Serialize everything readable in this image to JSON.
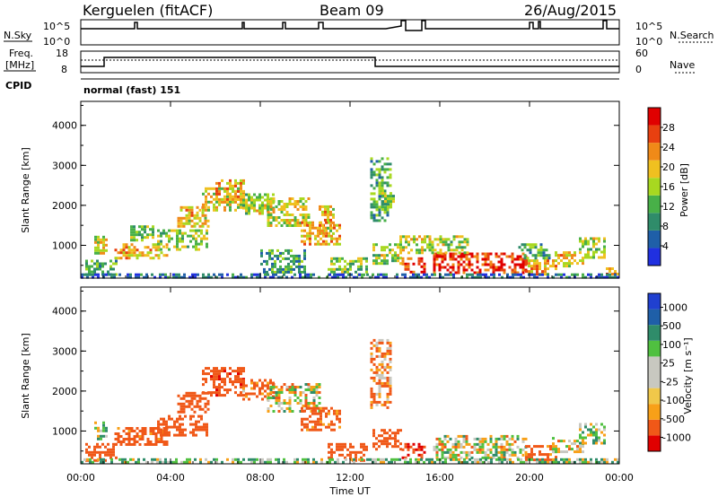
{
  "header": {
    "title": "Kerguelen (fitACF)",
    "beam": "Beam 09",
    "date": "26/Aug/2015"
  },
  "top_panel": {
    "nsky_label": "N.Sky",
    "nsearch_label": "N.Search",
    "left_ticks": [
      "10^5",
      "10^0"
    ],
    "right_ticks": [
      "10^5",
      "10^0"
    ],
    "freq_label_1": "Freq.",
    "freq_label_2": "[MHz]",
    "freq_ticks": [
      "18",
      "8"
    ],
    "nave_label": "Nave",
    "nave_ticks": [
      "60",
      "0"
    ],
    "cpid_label": "CPID",
    "cpid_text": "normal (fast) 151"
  },
  "colors": {
    "power": [
      "#2030e0",
      "#1f5fa8",
      "#2f8c6a",
      "#48b048",
      "#a8d820",
      "#f0c020",
      "#f08a18",
      "#e84010",
      "#e00000"
    ],
    "velocity": [
      "#e00000",
      "#f05818",
      "#f8a018",
      "#f0c84a",
      "#c8c8c0",
      "#c8c8c0",
      "#50c040",
      "#2f8c6a",
      "#1f5fa8",
      "#2040d0"
    ]
  },
  "chart_data": [
    {
      "type": "heatmap",
      "name": "power-panel",
      "ylabel": "Slant Range [km]",
      "yticks": [
        "4000",
        "3000",
        "2000",
        "1000"
      ],
      "ytick_values": [
        4000,
        3000,
        2000,
        1000
      ],
      "ylim": [
        180,
        4600
      ],
      "xlim": [
        0,
        24
      ],
      "colorbar_label": "Power [dB]",
      "colorbar_ticks": [
        "28",
        "24",
        "20",
        "16",
        "12",
        "8",
        "4"
      ],
      "colorbar_tick_values": [
        28,
        24,
        20,
        16,
        12,
        8,
        4
      ],
      "colorbar_range": [
        0,
        32
      ],
      "regions": [
        {
          "x": [
            0.2,
            1.6
          ],
          "y": [
            280,
            640
          ],
          "value": 12
        },
        {
          "x": [
            0.6,
            1.2
          ],
          "y": [
            820,
            1240
          ],
          "value": 18
        },
        {
          "x": [
            1.5,
            3.8
          ],
          "y": [
            650,
            1050
          ],
          "value": 22
        },
        {
          "x": [
            2.2,
            3.2
          ],
          "y": [
            1100,
            1500
          ],
          "value": 14
        },
        {
          "x": [
            3.4,
            5.6
          ],
          "y": [
            900,
            1400
          ],
          "value": 16
        },
        {
          "x": [
            4.3,
            5.7
          ],
          "y": [
            1480,
            1980
          ],
          "value": 20
        },
        {
          "x": [
            5.4,
            7.2
          ],
          "y": [
            1900,
            2450
          ],
          "value": 18
        },
        {
          "x": [
            6.0,
            7.3
          ],
          "y": [
            2100,
            2650
          ],
          "value": 22
        },
        {
          "x": [
            7.2,
            8.6
          ],
          "y": [
            1800,
            2300
          ],
          "value": 16
        },
        {
          "x": [
            8.3,
            10.2
          ],
          "y": [
            1500,
            2200
          ],
          "value": 18
        },
        {
          "x": [
            9.8,
            11.5
          ],
          "y": [
            1000,
            1600
          ],
          "value": 22
        },
        {
          "x": [
            10.6,
            11.3
          ],
          "y": [
            1300,
            2000
          ],
          "value": 20
        },
        {
          "x": [
            8.0,
            10.0
          ],
          "y": [
            350,
            900
          ],
          "value": 10
        },
        {
          "x": [
            11.0,
            12.8
          ],
          "y": [
            280,
            700
          ],
          "value": 14
        },
        {
          "x": [
            12.9,
            13.8
          ],
          "y": [
            1600,
            3200
          ],
          "value": 12
        },
        {
          "x": [
            13.4,
            13.9
          ],
          "y": [
            1900,
            2400
          ],
          "value": 14
        },
        {
          "x": [
            13.0,
            14.3
          ],
          "y": [
            550,
            1050
          ],
          "value": 16
        },
        {
          "x": [
            14.3,
            15.3
          ],
          "y": [
            300,
            700
          ],
          "value": 28
        },
        {
          "x": [
            14.2,
            15.4
          ],
          "y": [
            800,
            1250
          ],
          "value": 18
        },
        {
          "x": [
            15.7,
            19.8
          ],
          "y": [
            300,
            820
          ],
          "value": 28
        },
        {
          "x": [
            15.5,
            17.2
          ],
          "y": [
            820,
            1250
          ],
          "value": 16
        },
        {
          "x": [
            19.8,
            21.2
          ],
          "y": [
            300,
            650
          ],
          "value": 22
        },
        {
          "x": [
            19.5,
            20.9
          ],
          "y": [
            650,
            1050
          ],
          "value": 12
        },
        {
          "x": [
            21.0,
            22.4
          ],
          "y": [
            450,
            850
          ],
          "value": 20
        },
        {
          "x": [
            22.2,
            23.4
          ],
          "y": [
            700,
            1200
          ],
          "value": 16
        },
        {
          "x": [
            23.4,
            24.0
          ],
          "y": [
            280,
            450
          ],
          "value": 24
        },
        {
          "x": [
            0.0,
            24.0
          ],
          "y": [
            190,
            300
          ],
          "value": 6
        }
      ]
    },
    {
      "type": "heatmap",
      "name": "velocity-panel",
      "ylabel": "Slant Range [km]",
      "yticks": [
        "4000",
        "3000",
        "2000",
        "1000"
      ],
      "ytick_values": [
        4000,
        3000,
        2000,
        1000
      ],
      "ylim": [
        180,
        4600
      ],
      "xlim": [
        0,
        24
      ],
      "xticks": [
        "00:00",
        "04:00",
        "08:00",
        "12:00",
        "16:00",
        "20:00",
        "00:00"
      ],
      "xtick_values": [
        0,
        4,
        8,
        12,
        16,
        20,
        24
      ],
      "xlabel": "Time UT",
      "colorbar_label": "Velocity [m s⁻¹]",
      "colorbar_ticks": [
        "1000",
        "500",
        "100",
        "25",
        "-25",
        "-100",
        "-500",
        "-1000"
      ],
      "regions": [
        {
          "x": [
            0.2,
            1.6
          ],
          "y": [
            280,
            700
          ],
          "value": -300
        },
        {
          "x": [
            0.6,
            1.2
          ],
          "y": [
            820,
            1240
          ],
          "value": 40
        },
        {
          "x": [
            1.5,
            3.8
          ],
          "y": [
            650,
            1100
          ],
          "value": -200
        },
        {
          "x": [
            3.4,
            5.6
          ],
          "y": [
            900,
            1400
          ],
          "value": -300
        },
        {
          "x": [
            4.3,
            5.7
          ],
          "y": [
            1480,
            1980
          ],
          "value": -250
        },
        {
          "x": [
            5.4,
            7.3
          ],
          "y": [
            1900,
            2600
          ],
          "value": -400
        },
        {
          "x": [
            7.2,
            8.6
          ],
          "y": [
            1800,
            2300
          ],
          "value": -150
        },
        {
          "x": [
            8.3,
            10.6
          ],
          "y": [
            1500,
            2200
          ],
          "value": 0
        },
        {
          "x": [
            9.8,
            11.5
          ],
          "y": [
            1000,
            1600
          ],
          "value": -200
        },
        {
          "x": [
            11.0,
            12.8
          ],
          "y": [
            280,
            700
          ],
          "value": -300
        },
        {
          "x": [
            12.9,
            13.8
          ],
          "y": [
            1600,
            3300
          ],
          "value": -100
        },
        {
          "x": [
            13.0,
            14.3
          ],
          "y": [
            550,
            1050
          ],
          "value": -300
        },
        {
          "x": [
            14.3,
            15.3
          ],
          "y": [
            300,
            700
          ],
          "value": -500
        },
        {
          "x": [
            15.7,
            19.8
          ],
          "y": [
            350,
            900
          ],
          "value": 0
        },
        {
          "x": [
            19.8,
            21.2
          ],
          "y": [
            300,
            650
          ],
          "value": -200
        },
        {
          "x": [
            21.0,
            22.4
          ],
          "y": [
            450,
            850
          ],
          "value": 0
        },
        {
          "x": [
            22.2,
            23.4
          ],
          "y": [
            700,
            1200
          ],
          "value": 15
        },
        {
          "x": [
            0.0,
            24.0
          ],
          "y": [
            190,
            320
          ],
          "value": 60
        }
      ]
    }
  ]
}
